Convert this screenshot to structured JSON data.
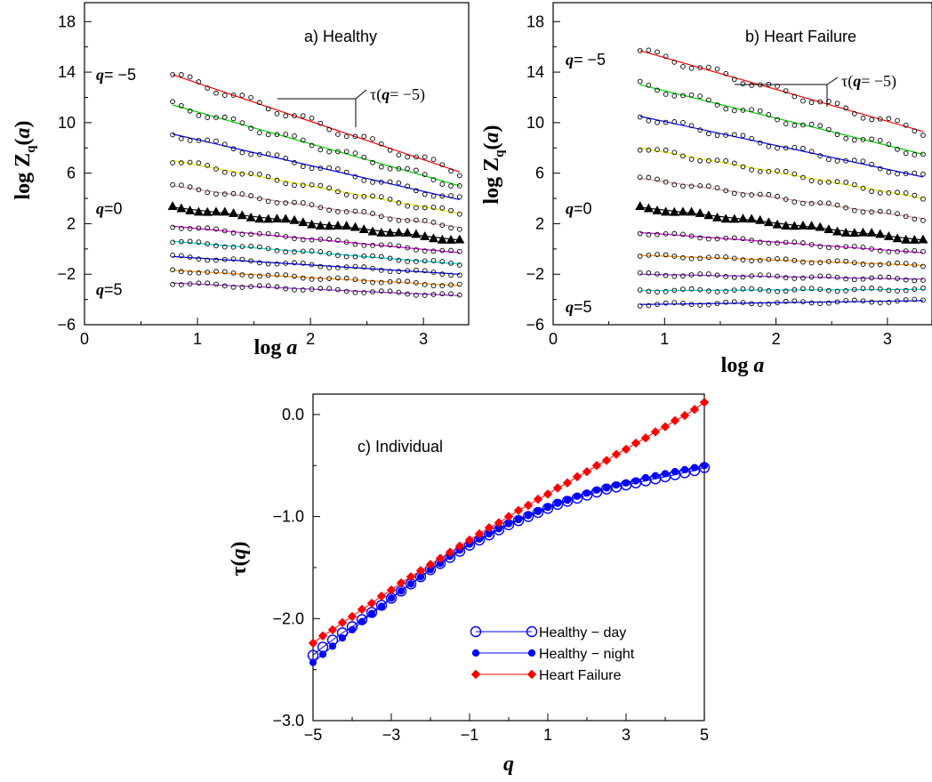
{
  "chart_data": [
    {
      "id": "a",
      "type": "scatter",
      "title": "a)  Healthy",
      "xlabel": "log a",
      "ylabel": "log Zq(a)",
      "xlim": [
        0,
        3.4
      ],
      "ylim": [
        -6,
        19.5
      ],
      "xticks": [
        "0",
        "1",
        "2",
        "3"
      ],
      "yticks": [
        "18",
        "14",
        "10",
        "6",
        "2",
        "−2",
        "−6"
      ],
      "ytick_values": [
        18,
        14,
        10,
        6,
        2,
        -2,
        -6
      ],
      "xtick_values": [
        0,
        1,
        2,
        3
      ],
      "q_labels": [
        {
          "text": "q= −5",
          "y": 13.8
        },
        {
          "text": "q=0",
          "y": 3.2
        },
        {
          "text": "q=5",
          "y": -3.2
        }
      ],
      "annotation": "τ(q= −5)",
      "x_range": [
        0.78,
        3.32
      ],
      "series": [
        {
          "q": -5,
          "start": 13.8,
          "end": 6.1,
          "line_color": "#ff0000",
          "marker": "open-circle"
        },
        {
          "q": -4,
          "start": 11.4,
          "end": 5.0,
          "line_color": "#00cc00",
          "marker": "open-circle"
        },
        {
          "q": -3,
          "start": 9.1,
          "end": 3.9,
          "line_color": "#0000ff",
          "marker": "open-circle"
        },
        {
          "q": -2,
          "start": 7.0,
          "end": 2.8,
          "line_color": "#e6e600",
          "marker": "open-circle"
        },
        {
          "q": -1,
          "start": 5.0,
          "end": 1.7,
          "line_color": "#cc9999",
          "marker": "open-circle"
        },
        {
          "q": 0,
          "start": 3.3,
          "end": 0.7,
          "line_color": "#000000",
          "marker": "filled-triangle"
        },
        {
          "q": 1,
          "start": 1.8,
          "end": -0.3,
          "line_color": "#cc00cc",
          "marker": "open-circle"
        },
        {
          "q": 2,
          "start": 0.6,
          "end": -1.2,
          "line_color": "#00cccc",
          "marker": "open-circle"
        },
        {
          "q": 3,
          "start": -0.6,
          "end": -2.0,
          "line_color": "#0000ff",
          "marker": "open-circle"
        },
        {
          "q": 4,
          "start": -1.7,
          "end": -2.9,
          "line_color": "#ff8c00",
          "marker": "open-circle"
        },
        {
          "q": 5,
          "start": -2.7,
          "end": -3.7,
          "line_color": "#9933cc",
          "marker": "open-circle"
        }
      ]
    },
    {
      "id": "b",
      "type": "scatter",
      "title": "b)  Heart Failure",
      "xlabel": "log a",
      "ylabel": "log Zq(a)",
      "xlim": [
        0,
        3.4
      ],
      "ylim": [
        -6,
        19.5
      ],
      "xticks": [
        "0",
        "1",
        "2",
        "3"
      ],
      "yticks": [
        "18",
        "14",
        "10",
        "6",
        "2",
        "−2",
        "−6"
      ],
      "ytick_values": [
        18,
        14,
        10,
        6,
        2,
        -2,
        -6
      ],
      "xtick_values": [
        0,
        1,
        2,
        3
      ],
      "q_labels": [
        {
          "text": "q= −5",
          "y": 15.0
        },
        {
          "text": "q=0",
          "y": 3.2
        },
        {
          "text": "q=5",
          "y": -4.6
        }
      ],
      "annotation": "τ(q= −5)",
      "x_range": [
        0.78,
        3.32
      ],
      "series": [
        {
          "q": -5,
          "start": 15.7,
          "end": 9.3,
          "line_color": "#ff0000",
          "marker": "open-circle"
        },
        {
          "q": -4,
          "start": 13.0,
          "end": 7.5,
          "line_color": "#00cc00",
          "marker": "open-circle"
        },
        {
          "q": -3,
          "start": 10.5,
          "end": 5.7,
          "line_color": "#0000ff",
          "marker": "open-circle"
        },
        {
          "q": -2,
          "start": 8.0,
          "end": 4.0,
          "line_color": "#e6e600",
          "marker": "open-circle"
        },
        {
          "q": -1,
          "start": 5.6,
          "end": 2.4,
          "line_color": "#cc9999",
          "marker": "open-circle"
        },
        {
          "q": 0,
          "start": 3.3,
          "end": 0.7,
          "line_color": "#000000",
          "marker": "filled-triangle"
        },
        {
          "q": 1,
          "start": 1.3,
          "end": -0.3,
          "line_color": "#cc00cc",
          "marker": "open-circle"
        },
        {
          "q": 2,
          "start": -0.5,
          "end": -1.3,
          "line_color": "#ff8c00",
          "marker": "open-circle"
        },
        {
          "q": 3,
          "start": -2.0,
          "end": -2.4,
          "line_color": "#9933cc",
          "marker": "open-circle"
        },
        {
          "q": 4,
          "start": -3.3,
          "end": -3.2,
          "line_color": "#00cccc",
          "marker": "open-circle"
        },
        {
          "q": 5,
          "start": -4.4,
          "end": -4.1,
          "line_color": "#0000ff",
          "marker": "open-circle"
        }
      ]
    },
    {
      "id": "c",
      "type": "line",
      "title": "c)  Individual",
      "xlabel": "q",
      "ylabel": "τ(q)",
      "xlim": [
        -5,
        5
      ],
      "ylim": [
        -3.0,
        0.2
      ],
      "xticks": [
        "−5",
        "−3",
        "−1",
        "1",
        "3",
        "5"
      ],
      "xtick_values": [
        -5,
        -3,
        -1,
        1,
        3,
        5
      ],
      "yticks": [
        "0.0",
        "−1.0",
        "−2.0",
        "−3.0"
      ],
      "ytick_values": [
        0,
        -1,
        -2,
        -3
      ],
      "x_start": -5,
      "x_step": 0.25,
      "legend_position": "lower-right",
      "series": [
        {
          "name": "Healthy − day",
          "color": "#0000ff",
          "marker": "open-circle",
          "values": [
            -2.36,
            -2.28,
            -2.21,
            -2.14,
            -2.08,
            -2.01,
            -1.94,
            -1.87,
            -1.8,
            -1.73,
            -1.66,
            -1.59,
            -1.52,
            -1.46,
            -1.4,
            -1.34,
            -1.28,
            -1.23,
            -1.18,
            -1.13,
            -1.08,
            -1.04,
            -1.0,
            -0.96,
            -0.92,
            -0.88,
            -0.85,
            -0.82,
            -0.79,
            -0.76,
            -0.73,
            -0.71,
            -0.69,
            -0.67,
            -0.65,
            -0.63,
            -0.61,
            -0.59,
            -0.57,
            -0.55,
            -0.52
          ]
        },
        {
          "name": "Healthy − night",
          "color": "#0000ff",
          "marker": "filled-circle",
          "values": [
            -2.43,
            -2.35,
            -2.27,
            -2.19,
            -2.11,
            -2.03,
            -1.95,
            -1.88,
            -1.8,
            -1.73,
            -1.66,
            -1.59,
            -1.52,
            -1.46,
            -1.39,
            -1.33,
            -1.27,
            -1.22,
            -1.17,
            -1.12,
            -1.07,
            -1.03,
            -0.99,
            -0.95,
            -0.91,
            -0.87,
            -0.84,
            -0.8,
            -0.77,
            -0.74,
            -0.72,
            -0.69,
            -0.67,
            -0.65,
            -0.62,
            -0.6,
            -0.58,
            -0.56,
            -0.54,
            -0.52,
            -0.5
          ]
        },
        {
          "name": "Heart Failure",
          "color": "#ff0000",
          "marker": "filled-diamond",
          "values": [
            -2.24,
            -2.17,
            -2.11,
            -2.04,
            -1.98,
            -1.91,
            -1.85,
            -1.78,
            -1.72,
            -1.65,
            -1.59,
            -1.53,
            -1.47,
            -1.41,
            -1.35,
            -1.29,
            -1.23,
            -1.17,
            -1.11,
            -1.06,
            -1.0,
            -0.94,
            -0.89,
            -0.83,
            -0.78,
            -0.72,
            -0.67,
            -0.61,
            -0.56,
            -0.5,
            -0.45,
            -0.39,
            -0.34,
            -0.28,
            -0.23,
            -0.17,
            -0.12,
            -0.06,
            -0.01,
            0.05,
            0.12
          ]
        }
      ]
    }
  ]
}
